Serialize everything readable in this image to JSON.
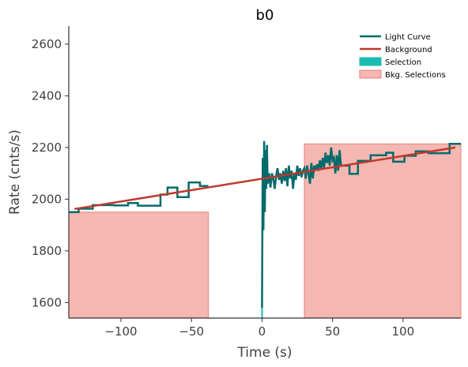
{
  "chart_data": {
    "type": "line",
    "title": "b0",
    "xlabel": "Time (s)",
    "ylabel": "Rate (cnts/s)",
    "xlim": [
      -137,
      141
    ],
    "ylim": [
      1540,
      2670
    ],
    "x_ticks": [
      -100,
      -50,
      0,
      50,
      100
    ],
    "x_tick_labels": [
      "−100",
      "−50",
      "0",
      "50",
      "100"
    ],
    "y_ticks": [
      1600,
      1800,
      2000,
      2200,
      2400,
      2600
    ],
    "y_tick_labels": [
      "1600",
      "1800",
      "2000",
      "2200",
      "2400",
      "2600"
    ],
    "grid": false,
    "legend_position": "top-right",
    "legend": [
      {
        "label": "Light Curve",
        "kind": "line",
        "color": "#006b6b"
      },
      {
        "label": "Background",
        "kind": "line",
        "color": "#c0392b"
      },
      {
        "label": "Selection",
        "kind": "patch",
        "color": "#1abcb1"
      },
      {
        "label": "Bkg. Selections",
        "kind": "patch",
        "color": "#f4b7b2"
      }
    ],
    "colors": {
      "light_curve": "#006b6b",
      "background": "#c0392b",
      "selection": "#1abcb1",
      "bkg_selection_fill": "#f4b7b2",
      "bkg_selection_edge": "#e8837a"
    },
    "series": [
      {
        "name": "Light Curve",
        "style": "step",
        "coarse_steps": [
          [
            -137,
            1950
          ],
          [
            -130,
            1963
          ],
          [
            -120,
            1977
          ],
          [
            -105,
            1976
          ],
          [
            -95,
            1985
          ],
          [
            -88,
            1975
          ],
          [
            -78,
            1975
          ],
          [
            -72,
            2018
          ],
          [
            -67,
            2045
          ],
          [
            -60,
            2008
          ],
          [
            -52,
            2065
          ],
          [
            -44,
            2051
          ],
          [
            -38,
            2051
          ]
        ],
        "fine_segment": [
          [
            0,
            1580
          ],
          [
            0.5,
            2160
          ],
          [
            1,
            1880
          ],
          [
            1.5,
            2225
          ],
          [
            2,
            1950
          ],
          [
            2.5,
            2190
          ],
          [
            3,
            2040
          ],
          [
            3.5,
            2210
          ],
          [
            4,
            2060
          ],
          [
            5,
            2100
          ],
          [
            6,
            2045
          ],
          [
            7,
            2100
          ],
          [
            8,
            2080
          ],
          [
            9,
            2040
          ],
          [
            10,
            2090
          ],
          [
            11,
            2120
          ],
          [
            12,
            2075
          ],
          [
            13,
            2100
          ],
          [
            14,
            2060
          ],
          [
            15,
            2110
          ],
          [
            16,
            2070
          ],
          [
            17,
            2120
          ],
          [
            18,
            2050
          ],
          [
            19,
            2130
          ],
          [
            20,
            2080
          ],
          [
            21,
            2110
          ],
          [
            22,
            2040
          ],
          [
            23,
            2100
          ],
          [
            24,
            2075
          ],
          [
            25,
            2130
          ],
          [
            26,
            2090
          ],
          [
            27,
            2120
          ],
          [
            28,
            2085
          ],
          [
            29,
            2110
          ],
          [
            30,
            2120
          ],
          [
            31,
            2080
          ],
          [
            32,
            2130
          ],
          [
            33,
            2100
          ],
          [
            34,
            2060
          ],
          [
            35,
            2140
          ],
          [
            36,
            2080
          ],
          [
            37,
            2130
          ],
          [
            38,
            2110
          ],
          [
            39,
            2135
          ],
          [
            40,
            2110
          ],
          [
            41,
            2150
          ],
          [
            42,
            2120
          ],
          [
            43,
            2160
          ],
          [
            44,
            2120
          ],
          [
            45,
            2180
          ],
          [
            46,
            2140
          ],
          [
            47,
            2170
          ],
          [
            48,
            2130
          ],
          [
            49,
            2200
          ],
          [
            50,
            2150
          ],
          [
            51,
            2160
          ],
          [
            52,
            2100
          ],
          [
            53,
            2170
          ],
          [
            54,
            2110
          ],
          [
            55,
            2190
          ],
          [
            56,
            2130
          ],
          [
            57,
            2130
          ]
        ],
        "tail_steps": [
          [
            57,
            2130
          ],
          [
            62,
            2098
          ],
          [
            68,
            2148
          ],
          [
            77,
            2170
          ],
          [
            88,
            2180
          ],
          [
            93,
            2145
          ],
          [
            101,
            2168
          ],
          [
            109,
            2185
          ],
          [
            118,
            2178
          ],
          [
            133,
            2214
          ],
          [
            141,
            2214
          ]
        ]
      },
      {
        "name": "Background",
        "style": "line",
        "points": [
          [
            -133,
            1962
          ],
          [
            137,
            2200
          ]
        ]
      }
    ],
    "selection": {
      "x_range": [
        -0.5,
        0.5
      ],
      "y_range": [
        1540,
        1600
      ]
    },
    "bkg_selections": [
      {
        "x_range": [
          -137,
          -38
        ],
        "y_top": 1950
      },
      {
        "x_range": [
          30,
          141
        ],
        "y_top": 2214
      }
    ]
  }
}
